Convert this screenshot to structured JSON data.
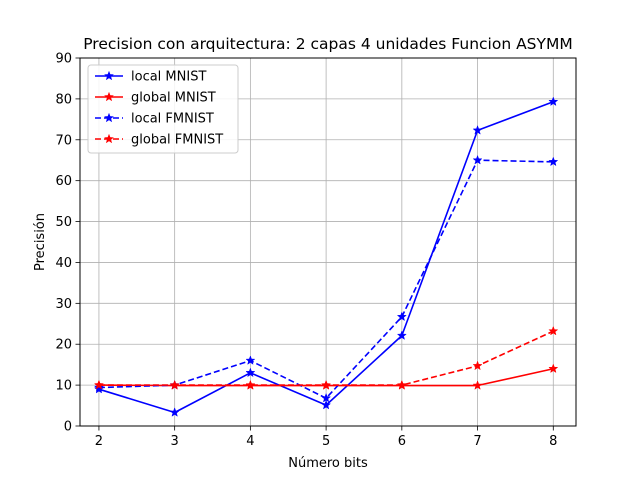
{
  "chart_data": {
    "type": "line",
    "title": "Precision con arquitectura: 2 capas 4 unidades Funcion ASYMM",
    "xlabel": "Número bits",
    "ylabel": "Precisión",
    "x": [
      2,
      3,
      4,
      5,
      6,
      7,
      8
    ],
    "xlim": [
      1.75,
      8.3
    ],
    "ylim": [
      0,
      90
    ],
    "xticks": [
      "2",
      "3",
      "4",
      "5",
      "6",
      "7",
      "8"
    ],
    "yticks": [
      "0",
      "10",
      "20",
      "30",
      "40",
      "50",
      "60",
      "70",
      "80",
      "90"
    ],
    "grid": true,
    "legend_position": "top-left",
    "series": [
      {
        "name": "local MNIST",
        "color": "#0000ff",
        "linestyle": "solid",
        "marker": "star",
        "values": [
          9.0,
          3.3,
          13.0,
          5.1,
          22.1,
          72.3,
          79.3
        ]
      },
      {
        "name": "global MNIST",
        "color": "#ff0000",
        "linestyle": "solid",
        "marker": "star",
        "values": [
          10.0,
          9.9,
          9.9,
          9.9,
          9.9,
          9.9,
          14.0
        ]
      },
      {
        "name": "local FMNIST",
        "color": "#0000ff",
        "linestyle": "dashed",
        "marker": "star",
        "values": [
          9.4,
          10.0,
          16.0,
          6.8,
          26.7,
          65.0,
          64.6
        ]
      },
      {
        "name": "global FMNIST",
        "color": "#ff0000",
        "linestyle": "dashed",
        "marker": "star",
        "values": [
          10.0,
          10.0,
          10.0,
          10.0,
          10.0,
          14.7,
          23.2
        ]
      }
    ]
  }
}
